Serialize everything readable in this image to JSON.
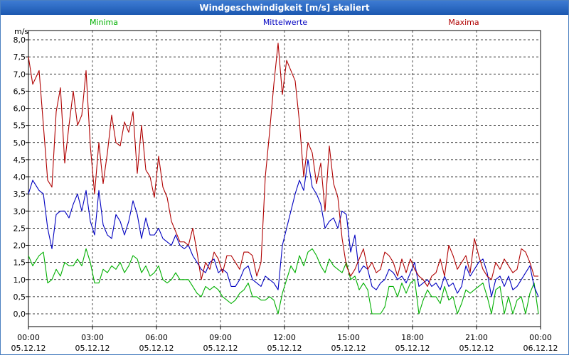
{
  "window": {
    "title": "Windgeschwindigkeit [m/s] skaliert"
  },
  "chart_data": {
    "type": "line",
    "title": "Windgeschwindigkeit [m/s] skaliert",
    "ylabel": "m/s",
    "ylim": [
      0,
      8
    ],
    "xlim_hours": [
      0,
      24
    ],
    "grid": true,
    "y_ticks": [
      "0,0",
      "0,5",
      "1,0",
      "1,5",
      "2,0",
      "2,5",
      "3,0",
      "3,5",
      "4,0",
      "4,5",
      "5,0",
      "5,5",
      "6,0",
      "6,5",
      "7,0",
      "7,5",
      "8,0"
    ],
    "x_ticks": [
      {
        "time": "00:00",
        "date": "05.12.12"
      },
      {
        "time": "03:00",
        "date": "05.12.12"
      },
      {
        "time": "06:00",
        "date": "05.12.12"
      },
      {
        "time": "09:00",
        "date": "05.12.12"
      },
      {
        "time": "12:00",
        "date": "05.12.12"
      },
      {
        "time": "15:00",
        "date": "05.12.12"
      },
      {
        "time": "18:00",
        "date": "05.12.12"
      },
      {
        "time": "21:00",
        "date": "05.12.12"
      },
      {
        "time": "00:00",
        "date": "06.12.12"
      }
    ],
    "series": [
      {
        "name": "Minima",
        "color": "#00b000",
        "x": [
          0,
          0.2,
          0.5,
          0.7,
          0.9,
          1.1,
          1.3,
          1.5,
          1.7,
          1.9,
          2.1,
          2.3,
          2.5,
          2.7,
          2.9,
          3.1,
          3.3,
          3.5,
          3.7,
          3.9,
          4.1,
          4.3,
          4.5,
          4.7,
          4.9,
          5.1,
          5.3,
          5.5,
          5.7,
          5.9,
          6.1,
          6.3,
          6.5,
          6.7,
          6.9,
          7.1,
          7.3,
          7.5,
          7.7,
          7.9,
          8.1,
          8.3,
          8.5,
          8.7,
          8.9,
          9.1,
          9.3,
          9.5,
          9.7,
          9.9,
          10.1,
          10.3,
          10.5,
          10.7,
          10.9,
          11.1,
          11.3,
          11.5,
          11.7,
          11.9,
          12.1,
          12.3,
          12.5,
          12.7,
          12.9,
          13.1,
          13.3,
          13.5,
          13.7,
          13.9,
          14.1,
          14.3,
          14.5,
          14.7,
          14.9,
          15.1,
          15.3,
          15.5,
          15.7,
          15.9,
          16.1,
          16.3,
          16.5,
          16.7,
          16.9,
          17.1,
          17.3,
          17.5,
          17.7,
          17.9,
          18.1,
          18.3,
          18.5,
          18.7,
          18.9,
          19.1,
          19.3,
          19.5,
          19.7,
          19.9,
          20.1,
          20.3,
          20.5,
          20.7,
          20.9,
          21.1,
          21.3,
          21.5,
          21.7,
          21.9,
          22.1,
          22.3,
          22.5,
          22.7,
          22.9,
          23.1,
          23.3,
          23.5,
          23.7,
          23.9
        ],
        "values": [
          1.7,
          1.4,
          1.7,
          1.8,
          0.9,
          1.0,
          1.3,
          1.1,
          1.5,
          1.4,
          1.4,
          1.6,
          1.4,
          1.9,
          1.5,
          0.9,
          0.9,
          1.3,
          1.2,
          1.4,
          1.3,
          1.5,
          1.2,
          1.4,
          1.7,
          1.6,
          1.2,
          1.4,
          1.1,
          1.2,
          1.4,
          1.0,
          0.9,
          1.0,
          1.2,
          1.0,
          1.0,
          1.0,
          0.8,
          0.6,
          0.5,
          0.8,
          0.7,
          0.8,
          0.7,
          0.5,
          0.4,
          0.3,
          0.4,
          0.6,
          0.7,
          0.9,
          0.5,
          0.5,
          0.4,
          0.4,
          0.5,
          0.4,
          0.0,
          0.6,
          1.0,
          1.4,
          1.2,
          1.7,
          1.4,
          1.8,
          1.9,
          1.7,
          1.4,
          1.2,
          1.6,
          1.4,
          1.3,
          1.2,
          1.5,
          1.0,
          1.1,
          0.7,
          0.9,
          0.7,
          0.0,
          0.0,
          0.0,
          0.2,
          0.8,
          0.8,
          0.5,
          0.9,
          0.6,
          0.9,
          1.0,
          0.0,
          0.4,
          0.7,
          0.5,
          0.5,
          0.3,
          0.8,
          0.4,
          0.5,
          0.0,
          0.3,
          0.7,
          0.6,
          0.7,
          0.8,
          0.9,
          0.5,
          0.0,
          0.7,
          0.8,
          0.0,
          0.5,
          0.0,
          0.4,
          0.5,
          0.0,
          0.6,
          0.9,
          0.0
        ]
      },
      {
        "name": "Mittelwerte",
        "color": "#0000c0",
        "x": [
          0,
          0.2,
          0.5,
          0.7,
          0.9,
          1.1,
          1.3,
          1.5,
          1.7,
          1.9,
          2.1,
          2.3,
          2.5,
          2.7,
          2.9,
          3.1,
          3.3,
          3.5,
          3.7,
          3.9,
          4.1,
          4.3,
          4.5,
          4.7,
          4.9,
          5.1,
          5.3,
          5.5,
          5.7,
          5.9,
          6.1,
          6.3,
          6.5,
          6.7,
          6.9,
          7.1,
          7.3,
          7.5,
          7.7,
          7.9,
          8.1,
          8.3,
          8.5,
          8.7,
          8.9,
          9.1,
          9.3,
          9.5,
          9.7,
          9.9,
          10.1,
          10.3,
          10.5,
          10.7,
          10.9,
          11.1,
          11.3,
          11.5,
          11.7,
          11.9,
          12.1,
          12.3,
          12.5,
          12.7,
          12.9,
          13.1,
          13.3,
          13.5,
          13.7,
          13.9,
          14.1,
          14.3,
          14.5,
          14.7,
          14.9,
          15.1,
          15.3,
          15.5,
          15.7,
          15.9,
          16.1,
          16.3,
          16.5,
          16.7,
          16.9,
          17.1,
          17.3,
          17.5,
          17.7,
          17.9,
          18.1,
          18.3,
          18.5,
          18.7,
          18.9,
          19.1,
          19.3,
          19.5,
          19.7,
          19.9,
          20.1,
          20.3,
          20.5,
          20.7,
          20.9,
          21.1,
          21.3,
          21.5,
          21.7,
          21.9,
          22.1,
          22.3,
          22.5,
          22.7,
          22.9,
          23.1,
          23.3,
          23.5,
          23.7,
          23.9
        ],
        "values": [
          3.5,
          3.9,
          3.6,
          3.5,
          2.5,
          1.9,
          2.9,
          3.0,
          3.0,
          2.8,
          3.2,
          3.5,
          3.0,
          3.6,
          2.7,
          2.3,
          3.6,
          2.6,
          2.3,
          2.2,
          2.9,
          2.7,
          2.3,
          2.7,
          3.3,
          2.9,
          2.2,
          2.8,
          2.3,
          2.3,
          2.5,
          2.2,
          2.1,
          2.0,
          2.3,
          2.0,
          1.9,
          2.0,
          1.7,
          1.5,
          1.3,
          1.2,
          1.5,
          1.6,
          1.2,
          1.3,
          1.2,
          0.8,
          0.8,
          1.0,
          1.3,
          1.4,
          1.0,
          0.9,
          0.8,
          1.1,
          1.0,
          0.9,
          0.7,
          2.0,
          2.5,
          3.0,
          3.5,
          3.9,
          3.6,
          4.5,
          3.7,
          3.5,
          3.2,
          2.5,
          2.7,
          2.8,
          2.5,
          3.0,
          2.9,
          1.8,
          2.3,
          1.2,
          1.4,
          1.3,
          0.8,
          0.7,
          0.9,
          1.0,
          1.3,
          1.2,
          1.0,
          1.1,
          0.9,
          1.2,
          1.5,
          0.8,
          0.9,
          1.0,
          0.8,
          0.9,
          0.7,
          1.1,
          0.8,
          0.9,
          0.6,
          0.8,
          1.4,
          1.1,
          1.3,
          1.5,
          1.6,
          1.2,
          0.5,
          1.0,
          1.1,
          0.8,
          1.1,
          0.7,
          0.8,
          1.0,
          1.2,
          1.4,
          0.8,
          0.5
        ]
      },
      {
        "name": "Maxima",
        "color": "#b00000",
        "x": [
          0,
          0.2,
          0.5,
          0.7,
          0.9,
          1.1,
          1.3,
          1.5,
          1.7,
          1.9,
          2.1,
          2.3,
          2.5,
          2.7,
          2.9,
          3.1,
          3.3,
          3.5,
          3.7,
          3.9,
          4.1,
          4.3,
          4.5,
          4.7,
          4.9,
          5.1,
          5.3,
          5.5,
          5.7,
          5.9,
          6.1,
          6.3,
          6.5,
          6.7,
          6.9,
          7.1,
          7.3,
          7.5,
          7.7,
          7.9,
          8.1,
          8.3,
          8.5,
          8.7,
          8.9,
          9.1,
          9.3,
          9.5,
          9.7,
          9.9,
          10.1,
          10.3,
          10.5,
          10.7,
          10.9,
          11.1,
          11.3,
          11.5,
          11.7,
          11.9,
          12.1,
          12.3,
          12.5,
          12.7,
          12.9,
          13.1,
          13.3,
          13.5,
          13.7,
          13.9,
          14.1,
          14.3,
          14.5,
          14.7,
          14.9,
          15.1,
          15.3,
          15.5,
          15.7,
          15.9,
          16.1,
          16.3,
          16.5,
          16.7,
          16.9,
          17.1,
          17.3,
          17.5,
          17.7,
          17.9,
          18.1,
          18.3,
          18.5,
          18.7,
          18.9,
          19.1,
          19.3,
          19.5,
          19.7,
          19.9,
          20.1,
          20.3,
          20.5,
          20.7,
          20.9,
          21.1,
          21.3,
          21.5,
          21.7,
          21.9,
          22.1,
          22.3,
          22.5,
          22.7,
          22.9,
          23.1,
          23.3,
          23.5,
          23.7,
          23.9
        ],
        "values": [
          7.5,
          6.7,
          7.1,
          5.5,
          3.9,
          3.7,
          5.9,
          6.6,
          4.4,
          5.5,
          6.5,
          5.5,
          5.8,
          7.1,
          4.9,
          3.5,
          5.0,
          3.8,
          4.7,
          5.8,
          5.0,
          4.9,
          5.6,
          5.3,
          5.9,
          4.1,
          5.5,
          4.2,
          4.0,
          3.4,
          4.6,
          3.7,
          3.4,
          2.7,
          2.4,
          2.1,
          2.1,
          2.0,
          2.5,
          1.8,
          1.0,
          1.5,
          1.3,
          1.8,
          1.6,
          1.2,
          1.7,
          1.7,
          1.5,
          1.3,
          1.8,
          1.8,
          1.7,
          1.1,
          1.5,
          4.0,
          5.3,
          6.7,
          7.9,
          6.4,
          7.4,
          7.1,
          6.8,
          5.6,
          4.0,
          5.0,
          4.7,
          3.8,
          4.4,
          3.0,
          4.9,
          3.8,
          3.4,
          2.2,
          1.4,
          1.1,
          1.3,
          1.6,
          1.9,
          1.3,
          1.5,
          1.2,
          1.3,
          1.8,
          1.7,
          1.5,
          1.1,
          1.6,
          1.2,
          1.6,
          1.3,
          1.1,
          1.0,
          0.8,
          1.1,
          1.2,
          1.6,
          1.1,
          2.0,
          1.7,
          1.3,
          1.5,
          1.7,
          1.2,
          2.2,
          1.7,
          1.3,
          1.1,
          1.0,
          1.5,
          1.3,
          1.6,
          1.4,
          1.2,
          1.3,
          1.9,
          1.8,
          1.5,
          1.1,
          1.1
        ]
      }
    ]
  }
}
